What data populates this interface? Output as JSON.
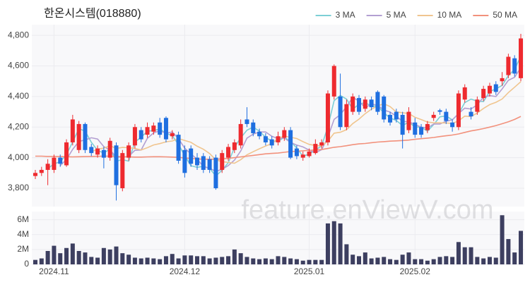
{
  "chart_data": {
    "type": "candlestick",
    "title": "한온시스템(018880)",
    "watermark": "feature.enViewV.com",
    "categories": [
      null,
      null,
      null,
      "2024.11",
      null,
      null,
      null,
      null,
      null,
      null,
      null,
      null,
      null,
      null,
      null,
      null,
      null,
      null,
      null,
      null,
      null,
      null,
      null,
      null,
      "2024.12",
      null,
      null,
      null,
      null,
      null,
      null,
      null,
      null,
      null,
      null,
      null,
      null,
      null,
      null,
      null,
      null,
      null,
      null,
      null,
      "2025.01",
      null,
      null,
      null,
      null,
      null,
      null,
      null,
      null,
      null,
      null,
      null,
      null,
      null,
      null,
      null,
      null,
      "2025.02",
      null,
      null,
      null,
      null,
      null,
      null,
      null,
      null,
      null,
      null,
      null,
      null,
      null,
      null,
      null,
      null,
      null
    ],
    "open": [
      3880,
      3900,
      3920,
      3920,
      4000,
      3950,
      4100,
      4050,
      4220,
      4070,
      4020,
      4050,
      4000,
      4080,
      3800,
      4000,
      4080,
      4180,
      4150,
      4170,
      4230,
      4260,
      4140,
      4150,
      4050,
      4060,
      4000,
      4010,
      3990,
      4000,
      3920,
      4000,
      4050,
      4080,
      4250,
      4230,
      4170,
      4140,
      4120,
      4100,
      4130,
      4180,
      4060,
      4000,
      4010,
      4030,
      4080,
      4100,
      4400,
      4400,
      4200,
      4300,
      4390,
      4320,
      4380,
      4430,
      4400,
      4280,
      4300,
      4280,
      4180,
      4230,
      4200,
      4180,
      4260,
      4310,
      4300,
      4230,
      4200,
      4380,
      4300,
      4300,
      4390,
      4420,
      4480,
      4500,
      4540,
      4650,
      4520
    ],
    "high": [
      3920,
      3940,
      3990,
      4020,
      4020,
      4120,
      4280,
      4240,
      4230,
      4090,
      4080,
      4070,
      4130,
      4100,
      4050,
      4100,
      4220,
      4200,
      4230,
      4230,
      4260,
      4270,
      4180,
      4170,
      4080,
      4080,
      4030,
      4030,
      4010,
      4020,
      4050,
      4090,
      4120,
      4250,
      4330,
      4250,
      4190,
      4160,
      4140,
      4170,
      4200,
      4200,
      4080,
      4040,
      4060,
      4120,
      4120,
      4440,
      4610,
      4550,
      4380,
      4420,
      4410,
      4400,
      4400,
      4440,
      4410,
      4300,
      4320,
      4300,
      4330,
      4260,
      4220,
      4240,
      4300,
      4320,
      4320,
      4250,
      4440,
      4480,
      4330,
      4400,
      4470,
      4490,
      4500,
      4560,
      4680,
      4670,
      4810
    ],
    "low": [
      3860,
      3880,
      3820,
      3900,
      3940,
      3940,
      4080,
      4030,
      4030,
      4010,
      4000,
      3930,
      3980,
      3720,
      3780,
      3980,
      4060,
      4100,
      4130,
      4150,
      4130,
      4100,
      4120,
      3960,
      3870,
      3940,
      3920,
      3900,
      3900,
      3790,
      3900,
      3980,
      4030,
      4060,
      4200,
      4140,
      4120,
      4080,
      4060,
      4080,
      4110,
      3990,
      3990,
      3980,
      4000,
      4020,
      4060,
      4080,
      4380,
      4180,
      4180,
      4280,
      4280,
      4300,
      4310,
      4280,
      4230,
      4210,
      4230,
      4060,
      4160,
      4130,
      4130,
      4160,
      4240,
      4280,
      4220,
      4170,
      4180,
      4360,
      4250,
      4280,
      4370,
      4400,
      4410,
      4470,
      4520,
      4530,
      4500
    ],
    "close": [
      3900,
      3920,
      3960,
      4000,
      3960,
      4100,
      4250,
      4220,
      4050,
      4030,
      4060,
      4000,
      4110,
      3820,
      4030,
      4080,
      4200,
      4120,
      4200,
      4210,
      4150,
      4120,
      4160,
      3980,
      3900,
      3960,
      3950,
      3920,
      3920,
      3800,
      4030,
      4070,
      4100,
      4220,
      4220,
      4160,
      4140,
      4100,
      4080,
      4140,
      4180,
      4000,
      4010,
      4020,
      4040,
      4090,
      4100,
      4420,
      4600,
      4200,
      4350,
      4400,
      4300,
      4380,
      4330,
      4300,
      4250,
      4230,
      4250,
      4150,
      4300,
      4150,
      4150,
      4220,
      4280,
      4300,
      4240,
      4200,
      4420,
      4460,
      4270,
      4380,
      4450,
      4470,
      4430,
      4520,
      4660,
      4550,
      4780
    ],
    "volume": [
      600000,
      800000,
      1800000,
      2500000,
      1500000,
      2200000,
      2800000,
      1800000,
      1600000,
      1000000,
      900000,
      2200000,
      2000000,
      2400000,
      1500000,
      1300000,
      900000,
      800000,
      900000,
      800000,
      700000,
      1100000,
      1400000,
      800000,
      1200000,
      1200000,
      1100000,
      1100000,
      800000,
      900000,
      1000000,
      1100000,
      2000000,
      1500000,
      1000000,
      800000,
      700000,
      800000,
      700000,
      1100000,
      1000000,
      800000,
      700000,
      500000,
      600000,
      600000,
      600000,
      5500000,
      5800000,
      5500000,
      2700000,
      1300000,
      1100000,
      1600000,
      800000,
      900000,
      1000000,
      700000,
      600000,
      1300000,
      1600000,
      700000,
      700000,
      500000,
      700000,
      1000000,
      1100000,
      1000000,
      3000000,
      2300000,
      2300000,
      1000000,
      800000,
      1000000,
      900000,
      6600000,
      3400000,
      1600000,
      4500000
    ],
    "up_color": "#ee2a2f",
    "down_color": "#1f6fe0",
    "volume_color": "#3d3f60",
    "series": [
      {
        "name": "3 MA",
        "color": "#7dcfd6",
        "values": [
          null,
          null,
          3927,
          3960,
          3973,
          4020,
          4103,
          4190,
          4173,
          4100,
          4047,
          4030,
          4057,
          3977,
          3987,
          3977,
          4103,
          4133,
          4173,
          4177,
          4187,
          4160,
          4143,
          4087,
          4013,
          3947,
          3937,
          3943,
          3930,
          3880,
          3917,
          3967,
          4067,
          4130,
          4180,
          4200,
          4173,
          4133,
          4107,
          4107,
          4133,
          4107,
          4063,
          4010,
          4023,
          4050,
          4077,
          4203,
          4373,
          4407,
          4383,
          4317,
          4350,
          4360,
          4337,
          4337,
          4293,
          4260,
          4243,
          4210,
          4233,
          4200,
          4200,
          4173,
          4217,
          4267,
          4273,
          4247,
          4287,
          4360,
          4383,
          4370,
          4367,
          4433,
          4450,
          4473,
          4537,
          4577,
          4663
        ]
      },
      {
        "name": "5 MA",
        "color": "#b39fd2",
        "values": [
          null,
          null,
          null,
          null,
          3948,
          3988,
          4054,
          4106,
          4116,
          4130,
          4122,
          4072,
          4050,
          4004,
          4004,
          4008,
          4048,
          4050,
          4126,
          4162,
          4176,
          4160,
          4168,
          4124,
          4062,
          4024,
          3990,
          3942,
          3930,
          3910,
          3924,
          3948,
          3984,
          4044,
          4128,
          4154,
          4168,
          4168,
          4140,
          4124,
          4128,
          4100,
          4082,
          4070,
          4050,
          4032,
          4052,
          4134,
          4250,
          4282,
          4334,
          4394,
          4370,
          4326,
          4352,
          4342,
          4312,
          4298,
          4272,
          4236,
          4236,
          4216,
          4200,
          4194,
          4220,
          4220,
          4238,
          4248,
          4288,
          4324,
          4318,
          4346,
          4396,
          4406,
          4400,
          4450,
          4506,
          4526,
          4588
        ]
      },
      {
        "name": "10 MA",
        "color": "#f0c58f",
        "values": [
          null,
          null,
          null,
          null,
          null,
          null,
          null,
          null,
          null,
          4039,
          4055,
          4063,
          4078,
          4060,
          4067,
          4065,
          4060,
          4050,
          4065,
          4083,
          4092,
          4104,
          4109,
          4125,
          4112,
          4100,
          4075,
          4055,
          4027,
          3986,
          3974,
          3969,
          3963,
          3987,
          4019,
          4039,
          4058,
          4076,
          4092,
          4126,
          4141,
          4134,
          4125,
          4105,
          4087,
          4080,
          4076,
          4108,
          4160,
          4166,
          4183,
          4223,
          4252,
          4288,
          4317,
          4338,
          4353,
          4334,
          4299,
          4294,
          4289,
          4264,
          4249,
          4233,
          4228,
          4228,
          4227,
          4224,
          4241,
          4272,
          4269,
          4292,
          4322,
          4347,
          4362,
          4384,
          4426,
          4461,
          4497
        ]
      },
      {
        "name": "50 MA",
        "color": "#f2917c",
        "values": [
          4010,
          4010,
          4008,
          4008,
          4007,
          4006,
          4005,
          4006,
          4007,
          4008,
          4009,
          4010,
          4010,
          4008,
          4006,
          4005,
          4004,
          4004,
          4005,
          4006,
          4006,
          4005,
          4004,
          4002,
          3998,
          3995,
          3992,
          3990,
          3990,
          3990,
          3992,
          3995,
          4000,
          4005,
          4010,
          4015,
          4020,
          4025,
          4028,
          4030,
          4035,
          4040,
          4042,
          4045,
          4048,
          4050,
          4053,
          4060,
          4068,
          4072,
          4078,
          4085,
          4090,
          4093,
          4098,
          4102,
          4105,
          4108,
          4110,
          4112,
          4115,
          4120,
          4124,
          4128,
          4132,
          4138,
          4143,
          4148,
          4155,
          4165,
          4175,
          4182,
          4190,
          4200,
          4210,
          4222,
          4235,
          4250,
          4270
        ]
      }
    ],
    "ylim": [
      3680,
      4870
    ],
    "yticks": [
      {
        "value": 3800,
        "label": "3,800"
      },
      {
        "value": 4000,
        "label": "4,000"
      },
      {
        "value": 4200,
        "label": "4,200"
      },
      {
        "value": 4400,
        "label": "4,400"
      },
      {
        "value": 4600,
        "label": "4,600"
      },
      {
        "value": 4800,
        "label": "4,800"
      }
    ],
    "volume_ylim": [
      0,
      7100000
    ],
    "volume_yticks": [
      0,
      {
        "value": 2000000,
        "label": "2M"
      },
      {
        "value": 4000000,
        "label": "4M"
      },
      {
        "value": 6000000,
        "label": "6M"
      }
    ],
    "grid": true,
    "legend": "top-right"
  }
}
